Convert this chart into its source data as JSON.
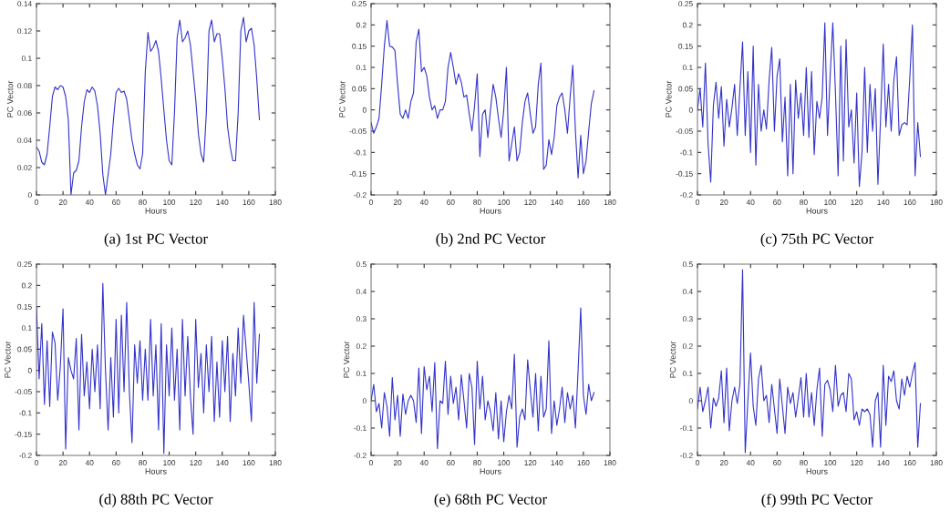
{
  "chart_data": [
    {
      "type": "line",
      "xlabel": "Hours",
      "ylabel": "PC Vector",
      "annotations": [
        "(a) 1st PC Vector"
      ],
      "xlim": [
        0,
        180
      ],
      "ylim": [
        0,
        0.14
      ],
      "xticks": [
        0,
        20,
        40,
        60,
        80,
        100,
        120,
        140,
        160,
        180
      ],
      "yticks": [
        0,
        0.02,
        0.04,
        0.06,
        0.08,
        0.1,
        0.12,
        0.14
      ],
      "line_style": "solid",
      "x": [
        0,
        2,
        4,
        6,
        8,
        10,
        12,
        14,
        16,
        18,
        20,
        22,
        24,
        26,
        28,
        30,
        32,
        34,
        36,
        38,
        40,
        42,
        44,
        46,
        48,
        50,
        52,
        54,
        56,
        58,
        60,
        62,
        64,
        66,
        68,
        70,
        72,
        74,
        76,
        78,
        80,
        82,
        84,
        86,
        88,
        90,
        92,
        94,
        96,
        98,
        100,
        102,
        104,
        106,
        108,
        110,
        112,
        114,
        116,
        118,
        120,
        122,
        124,
        126,
        128,
        130,
        132,
        134,
        136,
        138,
        140,
        142,
        144,
        146,
        148,
        150,
        152,
        154,
        156,
        158,
        160,
        162,
        164,
        166,
        168
      ],
      "series": [
        {
          "color": "#3333cc",
          "values": [
            0.035,
            0.032,
            0.024,
            0.022,
            0.03,
            0.05,
            0.072,
            0.079,
            0.077,
            0.08,
            0.079,
            0.072,
            0.055,
            0.0,
            0.016,
            0.018,
            0.025,
            0.05,
            0.068,
            0.077,
            0.075,
            0.079,
            0.076,
            0.065,
            0.045,
            0.015,
            0.0,
            0.015,
            0.03,
            0.055,
            0.075,
            0.078,
            0.075,
            0.076,
            0.07,
            0.055,
            0.04,
            0.03,
            0.022,
            0.019,
            0.03,
            0.09,
            0.119,
            0.105,
            0.108,
            0.113,
            0.105,
            0.085,
            0.062,
            0.04,
            0.025,
            0.022,
            0.06,
            0.115,
            0.128,
            0.112,
            0.115,
            0.12,
            0.11,
            0.09,
            0.07,
            0.045,
            0.03,
            0.024,
            0.06,
            0.12,
            0.128,
            0.112,
            0.118,
            0.118,
            0.1,
            0.078,
            0.05,
            0.035,
            0.025,
            0.025,
            0.06,
            0.12,
            0.13,
            0.112,
            0.12,
            0.122,
            0.11,
            0.085,
            0.055
          ]
        }
      ]
    },
    {
      "type": "line",
      "xlabel": "Hours",
      "ylabel": "PC Vector",
      "annotations": [
        "(b) 2nd PC Vector"
      ],
      "xlim": [
        0,
        180
      ],
      "ylim": [
        -0.2,
        0.25
      ],
      "xticks": [
        0,
        20,
        40,
        60,
        80,
        100,
        120,
        140,
        160,
        180
      ],
      "yticks": [
        -0.2,
        -0.15,
        -0.1,
        -0.05,
        0,
        0.05,
        0.1,
        0.15,
        0.2,
        0.25
      ],
      "line_style": "solid",
      "x": [
        0,
        2,
        4,
        6,
        8,
        10,
        12,
        14,
        16,
        18,
        20,
        22,
        24,
        26,
        28,
        30,
        32,
        34,
        36,
        38,
        40,
        42,
        44,
        46,
        48,
        50,
        52,
        54,
        56,
        58,
        60,
        62,
        64,
        66,
        68,
        70,
        72,
        74,
        76,
        78,
        80,
        82,
        84,
        86,
        88,
        90,
        92,
        94,
        96,
        98,
        100,
        102,
        104,
        106,
        108,
        110,
        112,
        114,
        116,
        118,
        120,
        122,
        124,
        126,
        128,
        130,
        132,
        134,
        136,
        138,
        140,
        142,
        144,
        146,
        148,
        150,
        152,
        154,
        156,
        158,
        160,
        162,
        164,
        166,
        168
      ],
      "series": [
        {
          "color": "#3333cc",
          "values": [
            -0.03,
            -0.055,
            -0.04,
            -0.02,
            0.06,
            0.15,
            0.21,
            0.15,
            0.148,
            0.14,
            0.06,
            -0.01,
            -0.02,
            0.0,
            -0.02,
            0.02,
            0.04,
            0.16,
            0.19,
            0.09,
            0.1,
            0.08,
            0.03,
            0.0,
            0.01,
            -0.02,
            0.0,
            0.0,
            0.02,
            0.1,
            0.135,
            0.1,
            0.06,
            0.085,
            0.065,
            0.03,
            0.035,
            -0.01,
            -0.05,
            0.01,
            0.085,
            -0.11,
            -0.01,
            0.0,
            -0.065,
            0.0,
            0.06,
            0.03,
            -0.02,
            -0.065,
            0.0,
            0.1,
            -0.12,
            -0.08,
            -0.04,
            -0.12,
            -0.1,
            -0.03,
            0.02,
            0.04,
            -0.01,
            -0.055,
            -0.04,
            0.06,
            0.11,
            -0.14,
            -0.13,
            -0.07,
            -0.105,
            -0.065,
            0.01,
            0.03,
            0.04,
            0.0,
            -0.055,
            0.03,
            0.105,
            -0.05,
            -0.16,
            -0.06,
            -0.15,
            -0.12,
            -0.05,
            0.015,
            0.045
          ]
        }
      ]
    },
    {
      "type": "line",
      "xlabel": "Hours",
      "ylabel": "PC Vector",
      "annotations": [
        "(c) 75th PC Vector"
      ],
      "xlim": [
        0,
        180
      ],
      "ylim": [
        -0.2,
        0.25
      ],
      "xticks": [
        0,
        20,
        40,
        60,
        80,
        100,
        120,
        140,
        160,
        180
      ],
      "yticks": [
        -0.2,
        -0.15,
        -0.1,
        -0.05,
        0,
        0.05,
        0.1,
        0.15,
        0.2,
        0.25
      ],
      "line_style": "solid",
      "x": [
        0,
        2,
        4,
        6,
        8,
        10,
        12,
        14,
        16,
        18,
        20,
        22,
        24,
        26,
        28,
        30,
        32,
        34,
        36,
        38,
        40,
        42,
        44,
        46,
        48,
        50,
        52,
        54,
        56,
        58,
        60,
        62,
        64,
        66,
        68,
        70,
        72,
        74,
        76,
        78,
        80,
        82,
        84,
        86,
        88,
        90,
        92,
        94,
        96,
        98,
        100,
        102,
        104,
        106,
        108,
        110,
        112,
        114,
        116,
        118,
        120,
        122,
        124,
        126,
        128,
        130,
        132,
        134,
        136,
        138,
        140,
        142,
        144,
        146,
        148,
        150,
        152,
        154,
        156,
        158,
        160,
        162,
        164,
        166,
        168
      ],
      "series": [
        {
          "color": "#3333cc",
          "values": [
            0.0,
            0.05,
            -0.04,
            0.11,
            -0.08,
            -0.17,
            0.01,
            0.065,
            -0.02,
            0.055,
            -0.085,
            0.025,
            -0.04,
            0.005,
            0.06,
            -0.06,
            0.05,
            0.16,
            -0.06,
            0.09,
            -0.1,
            0.15,
            -0.13,
            0.06,
            -0.05,
            0.0,
            -0.045,
            0.07,
            0.147,
            -0.05,
            0.08,
            0.12,
            -0.075,
            0.03,
            -0.155,
            0.06,
            -0.15,
            0.07,
            -0.02,
            0.04,
            -0.06,
            0.1,
            -0.065,
            0.09,
            -0.105,
            0.02,
            -0.02,
            0.03,
            0.205,
            -0.06,
            0.08,
            0.205,
            0.04,
            -0.155,
            0.15,
            -0.12,
            0.165,
            -0.04,
            0.0,
            -0.125,
            0.04,
            -0.18,
            -0.1,
            0.1,
            -0.1,
            0.06,
            -0.05,
            0.05,
            -0.175,
            -0.02,
            0.155,
            -0.04,
            0.06,
            -0.05,
            0.07,
            0.125,
            -0.06,
            -0.035,
            -0.03,
            -0.035,
            0.075,
            0.2,
            -0.155,
            -0.03,
            -0.11
          ]
        }
      ]
    },
    {
      "type": "line",
      "xlabel": "Hours",
      "ylabel": "PC Vector",
      "annotations": [
        "(d) 88th PC Vector"
      ],
      "xlim": [
        0,
        180
      ],
      "ylim": [
        -0.2,
        0.25
      ],
      "xticks": [
        0,
        20,
        40,
        60,
        80,
        100,
        120,
        140,
        160,
        180
      ],
      "yticks": [
        -0.2,
        -0.15,
        -0.1,
        -0.05,
        0,
        0.05,
        0.1,
        0.15,
        0.2,
        0.25
      ],
      "line_style": "solid",
      "x": [
        0,
        2,
        4,
        6,
        8,
        10,
        12,
        14,
        16,
        18,
        20,
        22,
        24,
        26,
        28,
        30,
        32,
        34,
        36,
        38,
        40,
        42,
        44,
        46,
        48,
        50,
        52,
        54,
        56,
        58,
        60,
        62,
        64,
        66,
        68,
        70,
        72,
        74,
        76,
        78,
        80,
        82,
        84,
        86,
        88,
        90,
        92,
        94,
        96,
        98,
        100,
        102,
        104,
        106,
        108,
        110,
        112,
        114,
        116,
        118,
        120,
        122,
        124,
        126,
        128,
        130,
        132,
        134,
        136,
        138,
        140,
        142,
        144,
        146,
        148,
        150,
        152,
        154,
        156,
        158,
        160,
        162,
        164,
        166,
        168
      ],
      "series": [
        {
          "color": "#3333cc",
          "values": [
            0.15,
            -0.02,
            0.11,
            -0.08,
            0.07,
            -0.085,
            0.09,
            0.065,
            -0.07,
            0.01,
            0.145,
            -0.185,
            0.03,
            0.0,
            -0.02,
            0.075,
            -0.14,
            0.085,
            -0.06,
            0.02,
            -0.09,
            0.05,
            -0.05,
            0.06,
            -0.09,
            0.205,
            0.0,
            -0.14,
            0.03,
            -0.11,
            0.12,
            -0.1,
            0.13,
            -0.05,
            0.16,
            -0.05,
            -0.17,
            0.06,
            -0.03,
            0.07,
            -0.07,
            0.05,
            -0.07,
            0.12,
            -0.06,
            0.06,
            -0.14,
            0.11,
            -0.195,
            0.06,
            -0.06,
            0.1,
            -0.07,
            0.05,
            -0.14,
            0.12,
            -0.06,
            0.08,
            -0.06,
            -0.15,
            0.12,
            -0.04,
            0.04,
            -0.1,
            0.06,
            -0.05,
            0.08,
            -0.12,
            0.02,
            -0.11,
            0.07,
            -0.05,
            0.08,
            -0.12,
            0.04,
            -0.06,
            0.1,
            -0.03,
            0.13,
            0.05,
            -0.03,
            -0.12,
            0.16,
            -0.03,
            0.085
          ]
        }
      ]
    },
    {
      "type": "line",
      "xlabel": "Hours",
      "ylabel": "PC Vector",
      "annotations": [
        "(e) 68th PC Vector"
      ],
      "xlim": [
        0,
        180
      ],
      "ylim": [
        -0.2,
        0.5
      ],
      "xticks": [
        0,
        20,
        40,
        60,
        80,
        100,
        120,
        140,
        160,
        180
      ],
      "yticks": [
        -0.2,
        -0.1,
        0,
        0.1,
        0.2,
        0.3,
        0.4,
        0.5
      ],
      "line_style": "solid",
      "x": [
        0,
        2,
        4,
        6,
        8,
        10,
        12,
        14,
        16,
        18,
        20,
        22,
        24,
        26,
        28,
        30,
        32,
        34,
        36,
        38,
        40,
        42,
        44,
        46,
        48,
        50,
        52,
        54,
        56,
        58,
        60,
        62,
        64,
        66,
        68,
        70,
        72,
        74,
        76,
        78,
        80,
        82,
        84,
        86,
        88,
        90,
        92,
        94,
        96,
        98,
        100,
        102,
        104,
        106,
        108,
        110,
        112,
        114,
        116,
        118,
        120,
        122,
        124,
        126,
        128,
        130,
        132,
        134,
        136,
        138,
        140,
        142,
        144,
        146,
        148,
        150,
        152,
        154,
        156,
        158,
        160,
        162,
        164,
        166,
        168
      ],
      "series": [
        {
          "color": "#3333cc",
          "values": [
            0.0,
            0.06,
            -0.04,
            -0.01,
            -0.1,
            0.03,
            -0.02,
            -0.13,
            0.085,
            -0.07,
            0.02,
            -0.13,
            0.025,
            -0.05,
            0.0,
            0.02,
            0.0,
            -0.08,
            0.12,
            -0.12,
            0.125,
            0.04,
            0.09,
            -0.04,
            0.14,
            -0.175,
            0.0,
            -0.01,
            0.145,
            -0.05,
            0.09,
            -0.01,
            0.05,
            -0.07,
            0.095,
            0.0,
            -0.1,
            0.1,
            0.05,
            -0.16,
            0.145,
            -0.03,
            0.09,
            -0.07,
            0.0,
            -0.04,
            -0.11,
            0.03,
            -0.14,
            0.0,
            -0.15,
            -0.04,
            0.02,
            -0.03,
            0.17,
            -0.17,
            -0.06,
            -0.03,
            -0.07,
            0.15,
            0.04,
            -0.06,
            0.1,
            -0.11,
            0.09,
            -0.06,
            -0.03,
            0.22,
            -0.12,
            0.0,
            -0.09,
            -0.03,
            0.05,
            -0.08,
            0.03,
            -0.03,
            0.02,
            -0.1,
            0.11,
            0.34,
            0.02,
            -0.05,
            0.06,
            0.0,
            0.03
          ]
        }
      ]
    },
    {
      "type": "line",
      "xlabel": "Hours",
      "ylabel": "PC Vector",
      "annotations": [
        "(f) 99th PC Vector"
      ],
      "xlim": [
        0,
        180
      ],
      "ylim": [
        -0.2,
        0.5
      ],
      "xticks": [
        0,
        20,
        40,
        60,
        80,
        100,
        120,
        140,
        160,
        180
      ],
      "yticks": [
        -0.2,
        -0.1,
        0,
        0.1,
        0.2,
        0.3,
        0.4,
        0.5
      ],
      "line_style": "solid",
      "x": [
        0,
        2,
        4,
        6,
        8,
        10,
        12,
        14,
        16,
        18,
        20,
        22,
        24,
        26,
        28,
        30,
        32,
        34,
        36,
        38,
        40,
        42,
        44,
        46,
        48,
        50,
        52,
        54,
        56,
        58,
        60,
        62,
        64,
        66,
        68,
        70,
        72,
        74,
        76,
        78,
        80,
        82,
        84,
        86,
        88,
        90,
        92,
        94,
        96,
        98,
        100,
        102,
        104,
        106,
        108,
        110,
        112,
        114,
        116,
        118,
        120,
        122,
        124,
        126,
        128,
        130,
        132,
        134,
        136,
        138,
        140,
        142,
        144,
        146,
        148,
        150,
        152,
        154,
        156,
        158,
        160,
        162,
        164,
        166,
        168
      ],
      "series": [
        {
          "color": "#3333cc",
          "values": [
            -0.03,
            0.05,
            -0.04,
            0.0,
            0.05,
            -0.1,
            0.01,
            -0.02,
            0.01,
            0.11,
            -0.08,
            0.12,
            -0.11,
            0.0,
            0.05,
            -0.01,
            0.06,
            0.48,
            -0.19,
            0.0,
            0.175,
            -0.02,
            -0.09,
            0.08,
            0.13,
            0.0,
            0.02,
            -0.08,
            0.06,
            -0.03,
            -0.12,
            0.08,
            -0.02,
            -0.12,
            0.05,
            -0.01,
            0.03,
            -0.06,
            0.01,
            0.085,
            -0.06,
            0.1,
            -0.06,
            0.03,
            -0.09,
            0.04,
            0.12,
            -0.13,
            0.06,
            0.075,
            0.04,
            -0.04,
            0.13,
            -0.02,
            0.02,
            0.03,
            -0.04,
            0.1,
            0.08,
            -0.07,
            -0.04,
            -0.09,
            -0.03,
            -0.04,
            -0.03,
            -0.05,
            -0.17,
            0.0,
            0.03,
            -0.17,
            0.13,
            -0.09,
            0.09,
            0.07,
            0.11,
            0.0,
            -0.03,
            0.08,
            0.02,
            0.09,
            0.05,
            0.1,
            0.14,
            -0.17,
            -0.01
          ]
        }
      ]
    }
  ]
}
